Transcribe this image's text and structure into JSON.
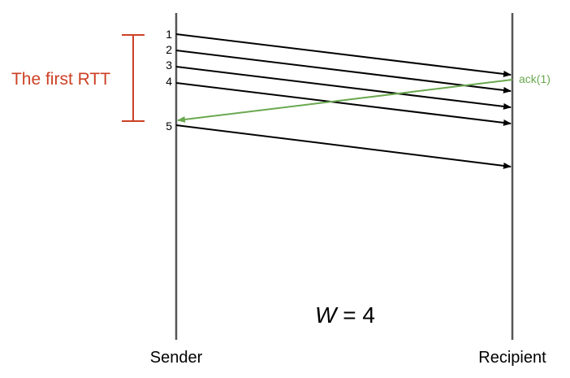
{
  "labels": {
    "sender": "Sender",
    "recipient": "Recipient",
    "rtt": "The first RTT",
    "window_var": "W",
    "window_eq": " = 4",
    "ack": "ack(1)"
  },
  "segments": [
    "1",
    "2",
    "3",
    "4",
    "5"
  ],
  "colors": {
    "lifeline": "#555555",
    "arrow": "#000000",
    "ack": "#6aa84f",
    "rtt": "#cc4125",
    "text": "#000000"
  }
}
